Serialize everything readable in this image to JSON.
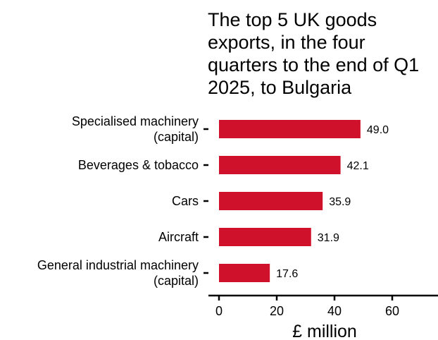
{
  "chart_data": {
    "type": "bar",
    "orientation": "horizontal",
    "title": "The top 5 UK goods exports, in the four quarters to the end of Q1 2025, to Bulgaria",
    "title_lines": [
      "The top 5 UK goods",
      "exports, in the four",
      "quarters to the end of Q1",
      "2025, to Bulgaria"
    ],
    "categories": [
      "Specialised machinery (capital)",
      "Beverages & tobacco",
      "Cars",
      "Aircraft",
      "General industrial machinery (capital)"
    ],
    "category_lines": [
      [
        "Specialised machinery",
        "(capital)"
      ],
      [
        "Beverages & tobacco"
      ],
      [
        "Cars"
      ],
      [
        "Aircraft"
      ],
      [
        "General industrial machinery",
        "(capital)"
      ]
    ],
    "values": [
      49.0,
      42.1,
      35.9,
      31.9,
      17.6
    ],
    "value_labels": [
      "49.0",
      "42.1",
      "35.9",
      "31.9",
      "17.6"
    ],
    "xlabel": "£ million",
    "ylabel": "",
    "xlim": [
      0,
      75
    ],
    "xticks": [
      0,
      20,
      40,
      60
    ],
    "grid": false,
    "legend": "none",
    "bar_color": "#d0112b"
  }
}
